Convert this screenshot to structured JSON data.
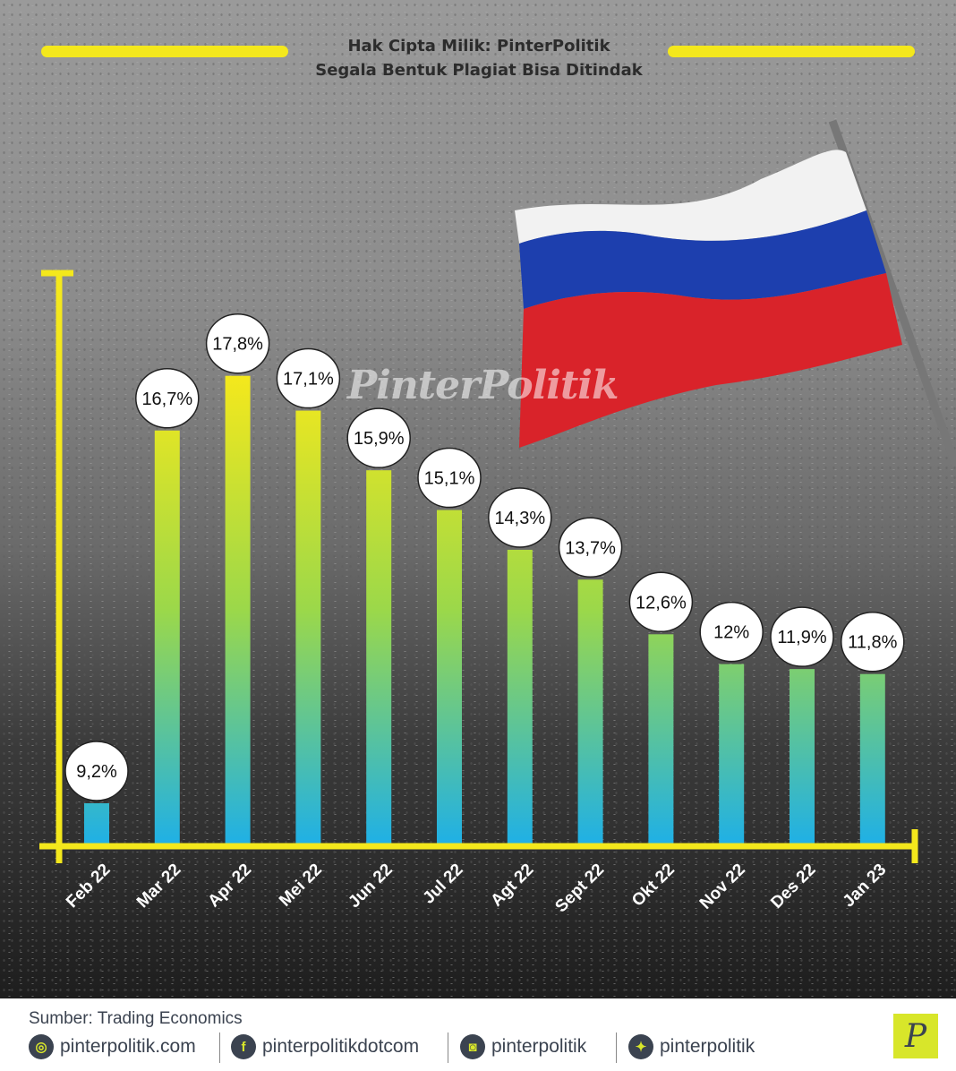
{
  "header": {
    "copyright_line1": "Hak Cipta Milik: PinterPolitik",
    "copyright_line2": "Segala Bentuk Plagiat Bisa Ditindak",
    "accent_color": "#f4e81c"
  },
  "watermark": "PinterPolitik",
  "chart_data": {
    "type": "bar",
    "title": "",
    "xlabel": "",
    "ylabel": "",
    "categories": [
      "Feb 22",
      "Mar 22",
      "Apr 22",
      "Mei 22",
      "Jun 22",
      "Jul 22",
      "Agt 22",
      "Sept 22",
      "Okt 22",
      "Nov 22",
      "Des 22",
      "Jan 23"
    ],
    "values": [
      9.2,
      16.7,
      17.8,
      17.1,
      15.9,
      15.1,
      14.3,
      13.7,
      12.6,
      12,
      11.9,
      11.8
    ],
    "labels": [
      "9,2%",
      "16,7%",
      "17,8%",
      "17,1%",
      "15,9%",
      "15,1%",
      "14,3%",
      "13,7%",
      "12,6%",
      "12%",
      "11,9%",
      "11,8%"
    ],
    "unit": "%",
    "grid": false,
    "bar_gradient": [
      "#f4e81c",
      "#1fb0e6"
    ],
    "axis_color": "#f4e81c"
  },
  "footer": {
    "source": "Sumber: Trading Economics",
    "social": [
      {
        "icon": "globe-icon",
        "label": "pinterpolitik.com"
      },
      {
        "icon": "facebook-icon",
        "label": "pinterpolitikdotcom"
      },
      {
        "icon": "instagram-icon",
        "label": "pinterpolitik"
      },
      {
        "icon": "twitter-icon",
        "label": "pinterpolitik"
      }
    ],
    "logo": "P"
  }
}
